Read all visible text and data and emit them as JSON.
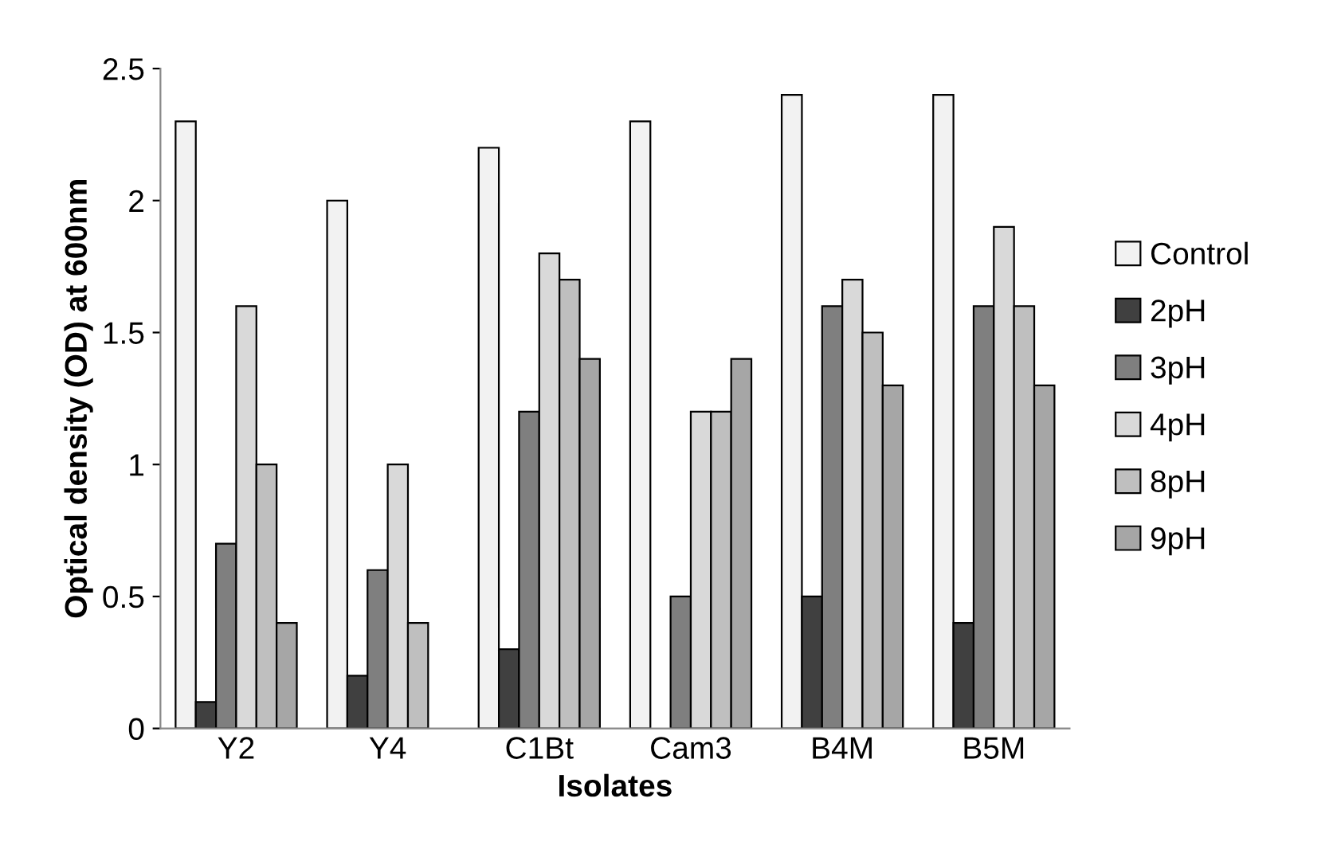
{
  "chart_data": {
    "type": "bar",
    "xlabel": "Isolates",
    "ylabel": "Optical density (OD) at 600nm",
    "categories": [
      "Y2",
      "Y4",
      "C1Bt",
      "Cam3",
      "B4M",
      "B5M"
    ],
    "series": [
      {
        "name": "Control",
        "color": "#f2f2f2",
        "values": [
          2.3,
          2.0,
          2.2,
          2.3,
          2.4,
          2.4
        ]
      },
      {
        "name": "2pH",
        "color": "#404040",
        "values": [
          0.1,
          0.2,
          0.3,
          null,
          0.5,
          0.4
        ]
      },
      {
        "name": "3pH",
        "color": "#7f7f7f",
        "values": [
          0.7,
          0.6,
          1.2,
          0.5,
          1.6,
          1.6
        ]
      },
      {
        "name": "4pH",
        "color": "#d9d9d9",
        "values": [
          1.6,
          1.0,
          1.8,
          1.2,
          1.7,
          1.9
        ]
      },
      {
        "name": "8pH",
        "color": "#bfbfbf",
        "values": [
          1.0,
          0.4,
          1.7,
          1.2,
          1.5,
          1.6
        ]
      },
      {
        "name": "9pH",
        "color": "#a6a6a6",
        "values": [
          0.4,
          null,
          1.4,
          1.4,
          1.3,
          1.3
        ]
      }
    ],
    "ylim": [
      0,
      2.5
    ],
    "yticks": [
      0,
      0.5,
      1,
      1.5,
      2,
      2.5
    ],
    "grid": false,
    "legend": "right"
  }
}
